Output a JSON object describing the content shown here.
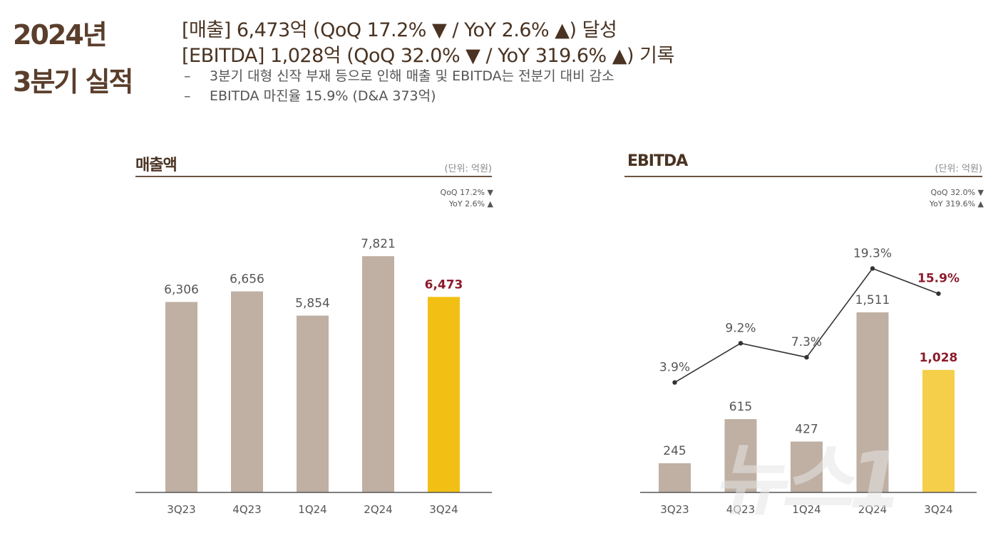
{
  "header": {
    "title_line1": "2024년",
    "title_line2": "3분기 실적",
    "headline1": "[매출] 6,473억 (QoQ 17.2% ▼ / YoY 2.6% ▲) 달성",
    "headline2": "[EBITDA] 1,028억 (QoQ 32.0% ▼ / YoY 319.6% ▲) 기록",
    "bullet_dash": "–",
    "bullet1": "3분기 대형 신작 부재 등으로 인해 매출 및 EBITDA는 전분기 대비 감소",
    "bullet2": "EBITDA 마진율 15.9% (D&A 373억)"
  },
  "revenue_panel": {
    "title": "매출액",
    "unit": "(단위: 억원)",
    "qoq": "QoQ 17.2% ▼",
    "yoy": "YoY 2.6% ▲"
  },
  "ebitda_panel": {
    "title": "EBITDA",
    "unit": "(단위: 억원)",
    "qoq": "QoQ 32.0% ▼",
    "yoy": "YoY 319.6% ▲"
  },
  "colors": {
    "bar": "#bfb0a3",
    "highlight_bar": "#f2c014",
    "highlight_bar_ebitda": "#f5cf4a",
    "highlight_label": "#8b1c2c",
    "label": "#555555",
    "line": "#333333",
    "axis": "#555555"
  },
  "watermark": "뉴스1",
  "chart_data": [
    {
      "type": "bar",
      "title": "매출액",
      "categories": [
        "3Q23",
        "4Q23",
        "1Q24",
        "2Q24",
        "3Q24"
      ],
      "values": [
        6306,
        6656,
        5854,
        7821,
        6473
      ],
      "value_labels": [
        "6,306",
        "6,656",
        "5,854",
        "7,821",
        "6,473"
      ],
      "highlight_index": 4,
      "ylim": [
        0,
        9000
      ]
    },
    {
      "type": "bar+line",
      "title": "EBITDA",
      "categories": [
        "3Q23",
        "4Q23",
        "1Q24",
        "2Q24",
        "3Q24"
      ],
      "values": [
        245,
        615,
        427,
        1511,
        1028
      ],
      "value_labels": [
        "245",
        "615",
        "427",
        "1,511",
        "1,028"
      ],
      "margin": [
        3.9,
        9.2,
        7.3,
        19.3,
        15.9
      ],
      "margin_labels": [
        "3.9%",
        "9.2%",
        "7.3%",
        "19.3%",
        "15.9%"
      ],
      "highlight_index": 4,
      "ylim": [
        0,
        2000
      ],
      "margin_ylim": [
        0,
        22
      ]
    }
  ]
}
